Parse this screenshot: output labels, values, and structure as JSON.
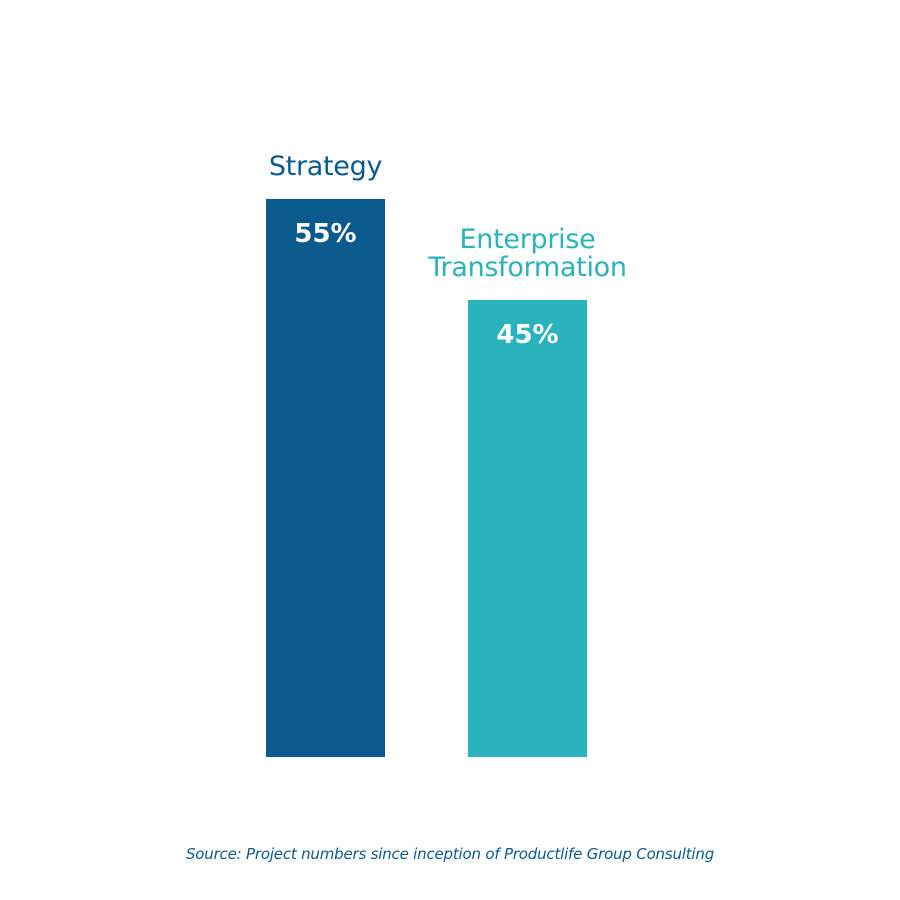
{
  "chart_data": {
    "type": "bar",
    "categories": [
      "Strategy",
      "Enterprise\nTransformation"
    ],
    "values": [
      55,
      45
    ],
    "data_labels": [
      "55%",
      "45%"
    ],
    "colors": [
      "#0b5a8e",
      "#2bb3bd"
    ],
    "ylim": [
      0,
      55
    ],
    "grid": false,
    "axes_visible": false
  },
  "source": "Source: Project numbers since inception of Productlife Group Consulting",
  "colors": {
    "source_text": "#0b5a8e",
    "label_text": "#ffffff"
  }
}
